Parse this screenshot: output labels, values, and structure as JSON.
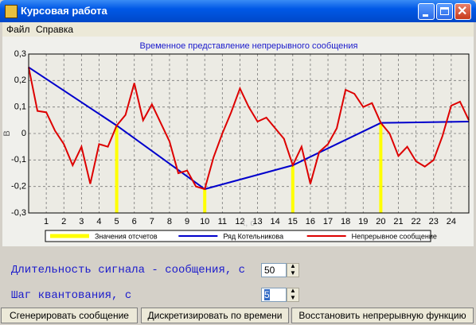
{
  "window": {
    "title": "Курсовая работа"
  },
  "menu": [
    "Файл",
    "Справка"
  ],
  "chart_data": {
    "type": "line",
    "title": "Временное представление непрерывного сообщения",
    "y_label": "В",
    "x_label": "t, c",
    "xlim": [
      0,
      25
    ],
    "ylim": [
      -0.3,
      0.3
    ],
    "xticks": [
      1,
      2,
      3,
      4,
      5,
      6,
      7,
      8,
      9,
      10,
      11,
      12,
      13,
      14,
      15,
      16,
      17,
      18,
      19,
      20,
      21,
      22,
      23,
      24
    ],
    "yticks": [
      {
        "value": -0.3,
        "label": "-0,3"
      },
      {
        "value": -0.2,
        "label": "-0,2"
      },
      {
        "value": -0.1,
        "label": "-0,1"
      },
      0,
      {
        "value": 0.1,
        "label": "0,1"
      },
      {
        "value": 0.2,
        "label": "0,2"
      },
      {
        "value": 0.3,
        "label": "0,3"
      }
    ],
    "grid": true,
    "series": [
      {
        "name": "Значения отсчетов",
        "type": "bar",
        "color": "#ffff00",
        "x": [
          5,
          10,
          15,
          20
        ],
        "values": [
          0.03,
          -0.21,
          -0.12,
          0.04
        ]
      },
      {
        "name": "Ряд Котельникова",
        "type": "line",
        "color": "#0000cc",
        "x": [
          0,
          5,
          10,
          15,
          20,
          25
        ],
        "values": [
          0.25,
          0.03,
          -0.21,
          -0.12,
          0.04,
          0.045
        ]
      },
      {
        "name": "Непрерывное сообщение",
        "type": "line",
        "color": "#dd0000",
        "x": [
          0,
          0.5,
          1,
          1.5,
          2,
          2.5,
          3,
          3.5,
          4,
          4.5,
          5,
          5.5,
          6,
          6.5,
          7,
          7.5,
          8,
          8.5,
          9,
          9.5,
          10,
          10.5,
          11,
          11.5,
          12,
          12.5,
          13,
          13.5,
          14,
          14.5,
          15,
          15.5,
          16,
          16.5,
          17,
          17.5,
          18,
          18.5,
          19,
          19.5,
          20,
          20.5,
          21,
          21.5,
          22,
          22.5,
          23,
          23.5,
          24,
          24.5,
          25
        ],
        "values": [
          0.25,
          0.085,
          0.08,
          0.01,
          -0.04,
          -0.12,
          -0.05,
          -0.19,
          -0.04,
          -0.05,
          0.03,
          0.07,
          0.19,
          0.05,
          0.11,
          0.04,
          -0.03,
          -0.15,
          -0.14,
          -0.2,
          -0.21,
          -0.09,
          0.0,
          0.08,
          0.17,
          0.1,
          0.045,
          0.06,
          0.02,
          -0.02,
          -0.12,
          -0.05,
          -0.19,
          -0.07,
          -0.04,
          0.02,
          0.165,
          0.15,
          0.1,
          0.115,
          0.04,
          0.0,
          -0.085,
          -0.05,
          -0.105,
          -0.125,
          -0.1,
          -0.01,
          0.105,
          0.12,
          0.05
        ]
      }
    ]
  },
  "form": {
    "fields": [
      {
        "label": "Длительность сигнала - сообщения, с",
        "value": 50
      },
      {
        "label": "Шаг квантования, с",
        "value": 5
      }
    ]
  },
  "buttons": [
    "Сгенерировать сообщение",
    "Дискретизировать по времени",
    "Восстановить непрерывную функцию"
  ]
}
